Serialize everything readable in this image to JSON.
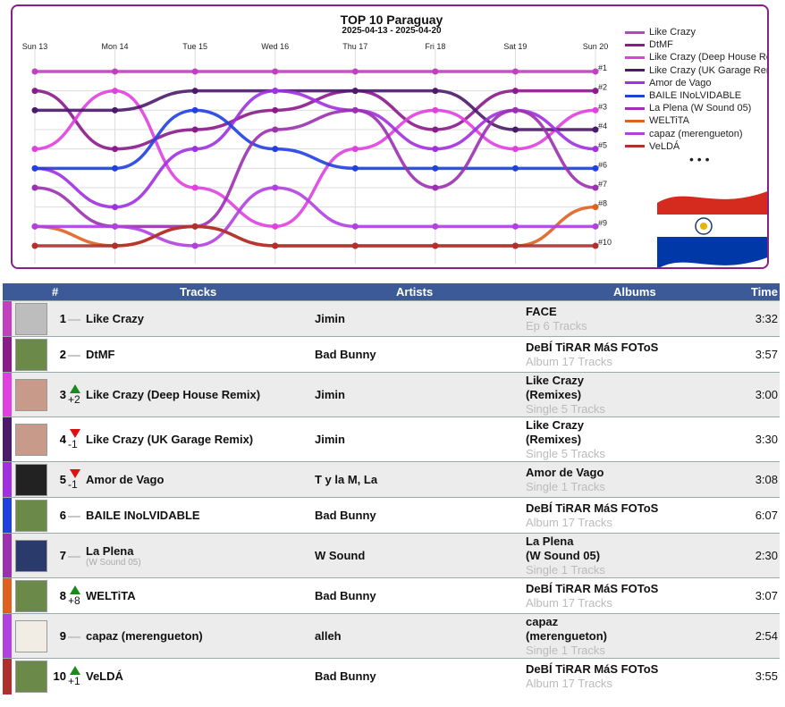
{
  "chart_data": {
    "type": "line",
    "title": "TOP 10 Paraguay",
    "subtitle": "2025-04-13 - 2025-04-20",
    "x": [
      "Sun 13",
      "Mon 14",
      "Tue 15",
      "Wed 16",
      "Thu 17",
      "Fri 18",
      "Sat 19",
      "Sun 20"
    ],
    "y_labels": [
      "#1",
      "#2",
      "#3",
      "#4",
      "#5",
      "#6",
      "#7",
      "#8",
      "#9",
      "#10"
    ],
    "ylim": [
      1,
      10
    ],
    "legend_placement": "right",
    "series": [
      {
        "name": "Like Crazy",
        "color": "#c040c0",
        "values": [
          1,
          1,
          1,
          1,
          1,
          1,
          1,
          1
        ]
      },
      {
        "name": "DtMF",
        "color": "#8b1a8b",
        "values": [
          2,
          5,
          4,
          3,
          2,
          4,
          2,
          2
        ]
      },
      {
        "name": "Like Crazy (Deep House Remix)",
        "color": "#e040e0",
        "values": [
          5,
          2,
          7,
          9,
          5,
          3,
          5,
          3
        ]
      },
      {
        "name": "Like Crazy (UK Garage Remix)",
        "color": "#4b1a6b",
        "values": [
          3,
          3,
          2,
          2,
          2,
          2,
          4,
          4
        ]
      },
      {
        "name": "Amor de Vago",
        "color": "#a030e0",
        "values": [
          6,
          8,
          5,
          2,
          3,
          5,
          3,
          5
        ]
      },
      {
        "name": "BAILE INoLVIDABLE",
        "color": "#2040e0",
        "values": [
          6,
          6,
          3,
          5,
          6,
          6,
          6,
          6
        ]
      },
      {
        "name": "La Plena (W Sound 05)",
        "color": "#9b30b0",
        "values": [
          7,
          9,
          9,
          4,
          3,
          7,
          3,
          7
        ]
      },
      {
        "name": "WELTiTA",
        "color": "#e06020",
        "values": [
          9,
          10,
          9,
          10,
          10,
          10,
          10,
          8
        ]
      },
      {
        "name": "capaz (merengueton)",
        "color": "#b040e0",
        "values": [
          9,
          9,
          10,
          7,
          9,
          9,
          9,
          9
        ]
      },
      {
        "name": "VeLDÁ",
        "color": "#b03030",
        "values": [
          10,
          10,
          9,
          10,
          10,
          10,
          10,
          10
        ]
      }
    ],
    "legend_more": "• • •"
  },
  "table": {
    "headers": {
      "rank": "#",
      "tracks": "Tracks",
      "artists": "Artists",
      "albums": "Albums",
      "time": "Time"
    },
    "rows": [
      {
        "rank": "1",
        "move": "none",
        "move_value": "",
        "track": "Like Crazy",
        "track_sub": "",
        "artist": "Jimin",
        "album": [
          "FACE"
        ],
        "album_sub": "Ep 6 Tracks",
        "time": "3:32",
        "stripe": "#c040c0",
        "thumb": "#bdbdbd"
      },
      {
        "rank": "2",
        "move": "none",
        "move_value": "",
        "track": "DtMF",
        "track_sub": "",
        "artist": "Bad Bunny",
        "album": [
          "DeBÍ TiRAR MáS FOToS"
        ],
        "album_sub": "Album 17 Tracks",
        "time": "3:57",
        "stripe": "#8b1a8b",
        "thumb": "#6b8a4a"
      },
      {
        "rank": "3",
        "move": "up",
        "move_value": "+2",
        "track": "Like Crazy (Deep House Remix)",
        "track_sub": "",
        "artist": "Jimin",
        "album": [
          "Like Crazy",
          "(Remixes)"
        ],
        "album_sub": "Single 5 Tracks",
        "time": "3:00",
        "stripe": "#e040e0",
        "thumb": "#c79a8a"
      },
      {
        "rank": "4",
        "move": "down",
        "move_value": "-1",
        "track": "Like Crazy (UK Garage Remix)",
        "track_sub": "",
        "artist": "Jimin",
        "album": [
          "Like Crazy",
          "(Remixes)"
        ],
        "album_sub": "Single 5 Tracks",
        "time": "3:30",
        "stripe": "#4b1a6b",
        "thumb": "#c79a8a"
      },
      {
        "rank": "5",
        "move": "down",
        "move_value": "-1",
        "track": "Amor de Vago",
        "track_sub": "",
        "artist": "T y la M, La",
        "album": [
          "Amor de Vago"
        ],
        "album_sub": "Single 1 Tracks",
        "time": "3:08",
        "stripe": "#a030e0",
        "thumb": "#222222"
      },
      {
        "rank": "6",
        "move": "none",
        "move_value": "",
        "track": "BAILE INoLVIDABLE",
        "track_sub": "",
        "artist": "Bad Bunny",
        "album": [
          "DeBÍ TiRAR MáS FOToS"
        ],
        "album_sub": "Album 17 Tracks",
        "time": "6:07",
        "stripe": "#2040e0",
        "thumb": "#6b8a4a"
      },
      {
        "rank": "7",
        "move": "none",
        "move_value": "",
        "track": "La Plena",
        "track_sub": "(W Sound 05)",
        "artist": "W Sound",
        "album": [
          "La Plena",
          "(W Sound 05)"
        ],
        "album_sub": "Single 1 Tracks",
        "time": "2:30",
        "stripe": "#9b30b0",
        "thumb": "#2a3a6a"
      },
      {
        "rank": "8",
        "move": "up",
        "move_value": "+8",
        "track": "WELTiTA",
        "track_sub": "",
        "artist": "Bad Bunny",
        "album": [
          "DeBÍ TiRAR MáS FOToS"
        ],
        "album_sub": "Album 17 Tracks",
        "time": "3:07",
        "stripe": "#e06020",
        "thumb": "#6b8a4a"
      },
      {
        "rank": "9",
        "move": "none",
        "move_value": "",
        "track": "capaz (merengueton)",
        "track_sub": "",
        "artist": "alleh",
        "album": [
          "capaz",
          "(merengueton)"
        ],
        "album_sub": "Single 1 Tracks",
        "time": "2:54",
        "stripe": "#b040e0",
        "thumb": "#f2ede4"
      },
      {
        "rank": "10",
        "move": "up",
        "move_value": "+1",
        "track": "VeLDÁ",
        "track_sub": "",
        "artist": "Bad Bunny",
        "album": [
          "DeBÍ TiRAR MáS FOToS"
        ],
        "album_sub": "Album 17 Tracks",
        "time": "3:55",
        "stripe": "#b03030",
        "thumb": "#6b8a4a"
      }
    ]
  }
}
